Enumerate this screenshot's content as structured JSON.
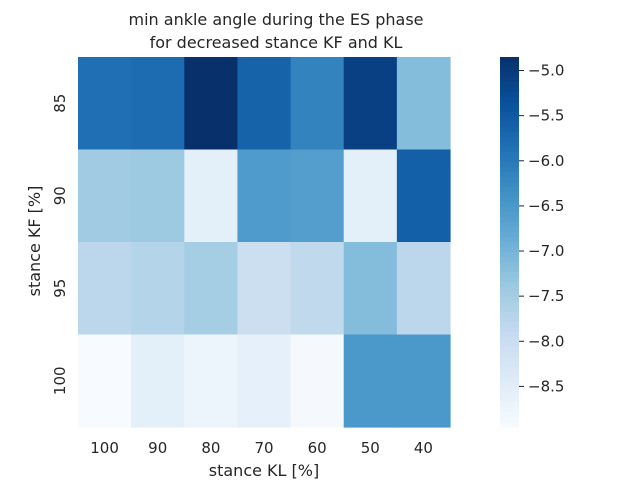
{
  "chart_data": {
    "type": "heatmap",
    "title": [
      "min ankle angle during the ES phase",
      "for decreased stance KF and KL"
    ],
    "xlabel": "stance KL [%]",
    "ylabel": "stance KF [%]",
    "x_categories": [
      "100",
      "90",
      "80",
      "70",
      "60",
      "50",
      "40"
    ],
    "y_categories": [
      "85",
      "90",
      "95",
      "100"
    ],
    "values": [
      [
        -5.85,
        -5.8,
        -4.85,
        -5.65,
        -6.15,
        -5.1,
        -7.15
      ],
      [
        -7.45,
        -7.4,
        -8.55,
        -6.55,
        -6.6,
        -8.55,
        -5.6
      ],
      [
        -7.8,
        -7.7,
        -7.5,
        -8.05,
        -7.85,
        -7.15,
        -7.8
      ],
      [
        -8.95,
        -8.55,
        -8.75,
        -8.6,
        -8.9,
        -6.5,
        -6.5
      ]
    ],
    "colormap": "Blues",
    "colorbar": {
      "range": [
        -8.95,
        -4.85
      ],
      "ticks": [
        -8.5,
        -8.0,
        -7.5,
        -7.0,
        -6.5,
        -6.0,
        -5.5,
        -5.0
      ],
      "tick_labels": [
        "−8.5",
        "−8.0",
        "−7.5",
        "−7.0",
        "−6.5",
        "−6.0",
        "−5.5",
        "−5.0"
      ]
    },
    "grid": false
  }
}
